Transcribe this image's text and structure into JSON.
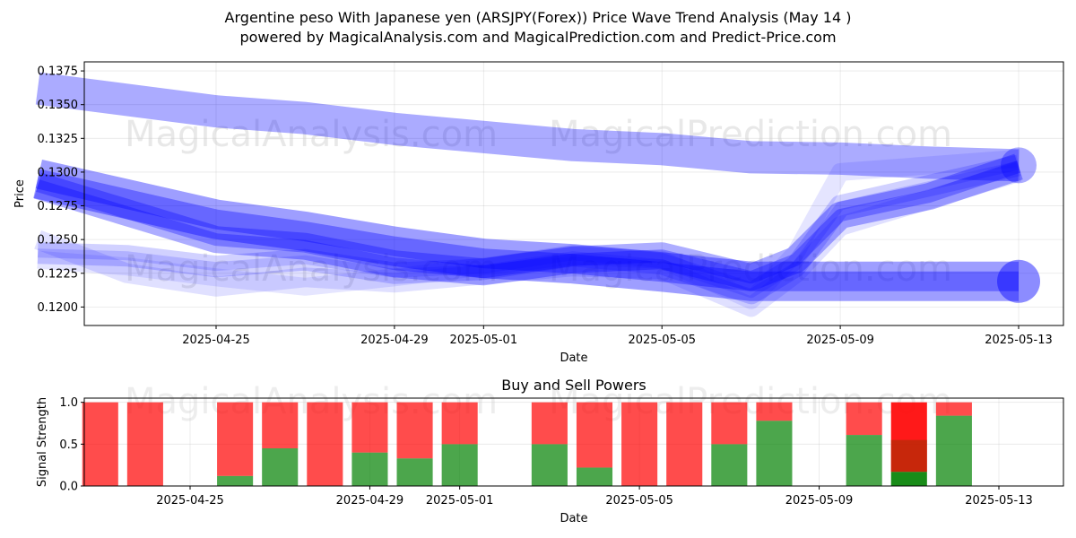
{
  "title": "Argentine peso With Japanese yen (ARSJPY(Forex)) Price Wave Trend Analysis (May 14 )",
  "subtitle": "powered by MagicalAnalysis.com and MagicalPrediction.com and Predict-Price.com",
  "watermarks": [
    "MagicalAnalysis.com",
    "MagicalPrediction.com"
  ],
  "colors": {
    "wave": "#0000ff",
    "buy": "#008000",
    "sell": "#ff0000"
  },
  "chart_data": [
    {
      "type": "area",
      "title": "",
      "xlabel": "Date",
      "ylabel": "Price",
      "ylim": [
        0.11863,
        0.13817
      ],
      "xlim": [
        "2025-04-20",
        "2025-05-14"
      ],
      "grid": true,
      "x_ticks": [
        "2025-04-25",
        "2025-04-29",
        "2025-05-01",
        "2025-05-05",
        "2025-05-09",
        "2025-05-13"
      ],
      "y_ticks": [
        "0.1200",
        "0.1225",
        "0.1250",
        "0.1275",
        "0.1300",
        "0.1325",
        "0.1350",
        "0.1375"
      ],
      "series": [
        {
          "dates": [
            "2025-04-21",
            "2025-04-25",
            "2025-04-27",
            "2025-04-29",
            "2025-05-01",
            "2025-05-03",
            "2025-05-05",
            "2025-05-07",
            "2025-05-09",
            "2025-05-11",
            "2025-05-13"
          ],
          "values": [
            0.1362,
            0.1345,
            0.134,
            0.1332,
            0.1326,
            0.132,
            0.1317,
            0.1311,
            0.131,
            0.1307,
            0.1305
          ]
        },
        {
          "dates": [
            "2025-04-21",
            "2025-04-25",
            "2025-04-27",
            "2025-04-29",
            "2025-05-01",
            "2025-05-03",
            "2025-05-05",
            "2025-05-07",
            "2025-05-09",
            "2025-05-11",
            "2025-05-13"
          ],
          "values": [
            0.1295,
            0.1265,
            0.1256,
            0.1245,
            0.1236,
            0.1232,
            0.1226,
            0.1219,
            0.1219,
            0.1219,
            0.1219
          ]
        },
        {
          "dates": [
            "2025-04-21",
            "2025-04-23",
            "2025-04-25",
            "2025-04-27",
            "2025-04-29",
            "2025-05-01",
            "2025-05-03",
            "2025-05-05",
            "2025-05-07",
            "2025-05-08",
            "2025-05-09",
            "2025-05-11",
            "2025-05-13"
          ],
          "values": [
            0.129,
            0.127,
            0.125,
            0.1245,
            0.1232,
            0.1226,
            0.1235,
            0.1238,
            0.1222,
            0.1235,
            0.1268,
            0.1282,
            0.1304
          ]
        },
        {
          "dates": [
            "2025-04-21",
            "2025-04-23",
            "2025-04-25",
            "2025-04-27",
            "2025-04-29",
            "2025-05-01",
            "2025-05-03",
            "2025-05-05",
            "2025-05-07",
            "2025-05-08",
            "2025-05-09",
            "2025-05-11",
            "2025-05-13"
          ],
          "values": [
            0.124,
            0.1238,
            0.123,
            0.1235,
            0.1225,
            0.1228,
            0.1238,
            0.1232,
            0.121,
            0.123,
            0.1275,
            0.129,
            0.1305
          ]
        },
        {
          "dates": [
            "2025-04-21",
            "2025-04-23",
            "2025-04-25",
            "2025-04-27",
            "2025-04-29",
            "2025-05-01",
            "2025-05-03",
            "2025-05-05",
            "2025-05-07",
            "2025-05-08",
            "2025-05-09",
            "2025-05-11",
            "2025-05-13"
          ],
          "values": [
            0.125,
            0.1225,
            0.1215,
            0.1222,
            0.1218,
            0.1224,
            0.123,
            0.1228,
            0.12,
            0.1225,
            0.126,
            0.128,
            0.13
          ]
        },
        {
          "dates": [
            "2025-04-21",
            "2025-04-23",
            "2025-04-25",
            "2025-04-27",
            "2025-04-29",
            "2025-05-01",
            "2025-05-03",
            "2025-05-05",
            "2025-05-07",
            "2025-05-08",
            "2025-05-09",
            "2025-05-11",
            "2025-05-13"
          ],
          "values": [
            0.1235,
            0.123,
            0.1222,
            0.1215,
            0.1222,
            0.123,
            0.1238,
            0.1235,
            0.1205,
            0.124,
            0.13,
            0.1305,
            0.131
          ]
        }
      ]
    },
    {
      "type": "bar",
      "title": "Buy and Sell Powers",
      "xlabel": "Date",
      "ylabel": "Signal Strength",
      "ylim": [
        0,
        1.05
      ],
      "y_ticks": [
        "0.0",
        "0.5",
        "1.0"
      ],
      "x_ticks": [
        "2025-04-25",
        "2025-04-29",
        "2025-05-01",
        "2025-05-05",
        "2025-05-09",
        "2025-05-13"
      ],
      "categories": [
        "2025-04-23",
        "2025-04-24",
        "2025-04-26",
        "2025-04-27",
        "2025-04-28",
        "2025-04-29",
        "2025-04-30",
        "2025-05-01",
        "2025-05-03",
        "2025-05-04",
        "2025-05-05",
        "2025-05-06",
        "2025-05-07",
        "2025-05-08",
        "2025-05-10",
        "2025-05-11",
        "2025-05-12"
      ],
      "series": [
        {
          "name": "Buy",
          "values": [
            0,
            0,
            0.12,
            0.45,
            0,
            0.4,
            0.33,
            0.5,
            0.5,
            0.22,
            0,
            0,
            0.5,
            0.78,
            0.61,
            0.17,
            0.84
          ]
        },
        {
          "name": "Sell",
          "values": [
            1,
            1,
            0.88,
            0.55,
            1,
            0.6,
            0.67,
            0.5,
            0.5,
            0.78,
            1,
            1,
            0.5,
            0.22,
            0.39,
            0.83,
            0.16
          ]
        }
      ]
    }
  ]
}
